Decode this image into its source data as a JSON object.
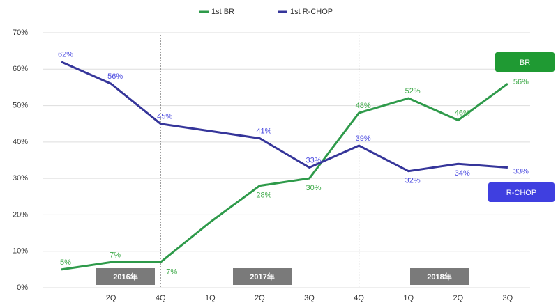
{
  "chart_data": {
    "type": "line",
    "categories": [
      null,
      "2Q",
      "4Q",
      "1Q",
      "2Q",
      "3Q",
      "4Q",
      "1Q",
      "2Q",
      "3Q"
    ],
    "series": [
      {
        "name": "1st BR",
        "color": "#2e9a4a",
        "label_color": "#3aa845",
        "badge": "BR",
        "values": [
          5,
          7,
          7,
          18,
          28,
          30,
          48,
          52,
          46,
          56
        ],
        "value_labels": [
          "5%",
          "7%",
          "7%",
          null,
          "28%",
          "30%",
          "48%",
          "52%",
          "46%",
          "56%"
        ]
      },
      {
        "name": "1st R-CHOP",
        "color": "#35359a",
        "label_color": "#4a4ae0",
        "badge": "R-CHOP",
        "values": [
          62,
          56,
          45,
          43,
          41,
          33,
          39,
          32,
          34,
          33
        ],
        "value_labels": [
          "62%",
          "56%",
          "45%",
          null,
          "41%",
          "33%",
          "39%",
          "32%",
          "34%",
          "33%"
        ]
      }
    ],
    "ylim": [
      0,
      70
    ],
    "yticks": [
      {
        "value": 0,
        "label": "0%"
      },
      {
        "value": 10,
        "label": "10%"
      },
      {
        "value": 20,
        "label": "20%"
      },
      {
        "value": 30,
        "label": "30%"
      },
      {
        "value": 40,
        "label": "40%"
      },
      {
        "value": 50,
        "label": "50%"
      },
      {
        "value": 60,
        "label": "60%"
      },
      {
        "value": 70,
        "label": "70%"
      }
    ],
    "grid": true,
    "legend": "top",
    "annotations": [
      {
        "text": "2016年"
      },
      {
        "text": "2017年"
      },
      {
        "text": "2018年"
      }
    ]
  }
}
